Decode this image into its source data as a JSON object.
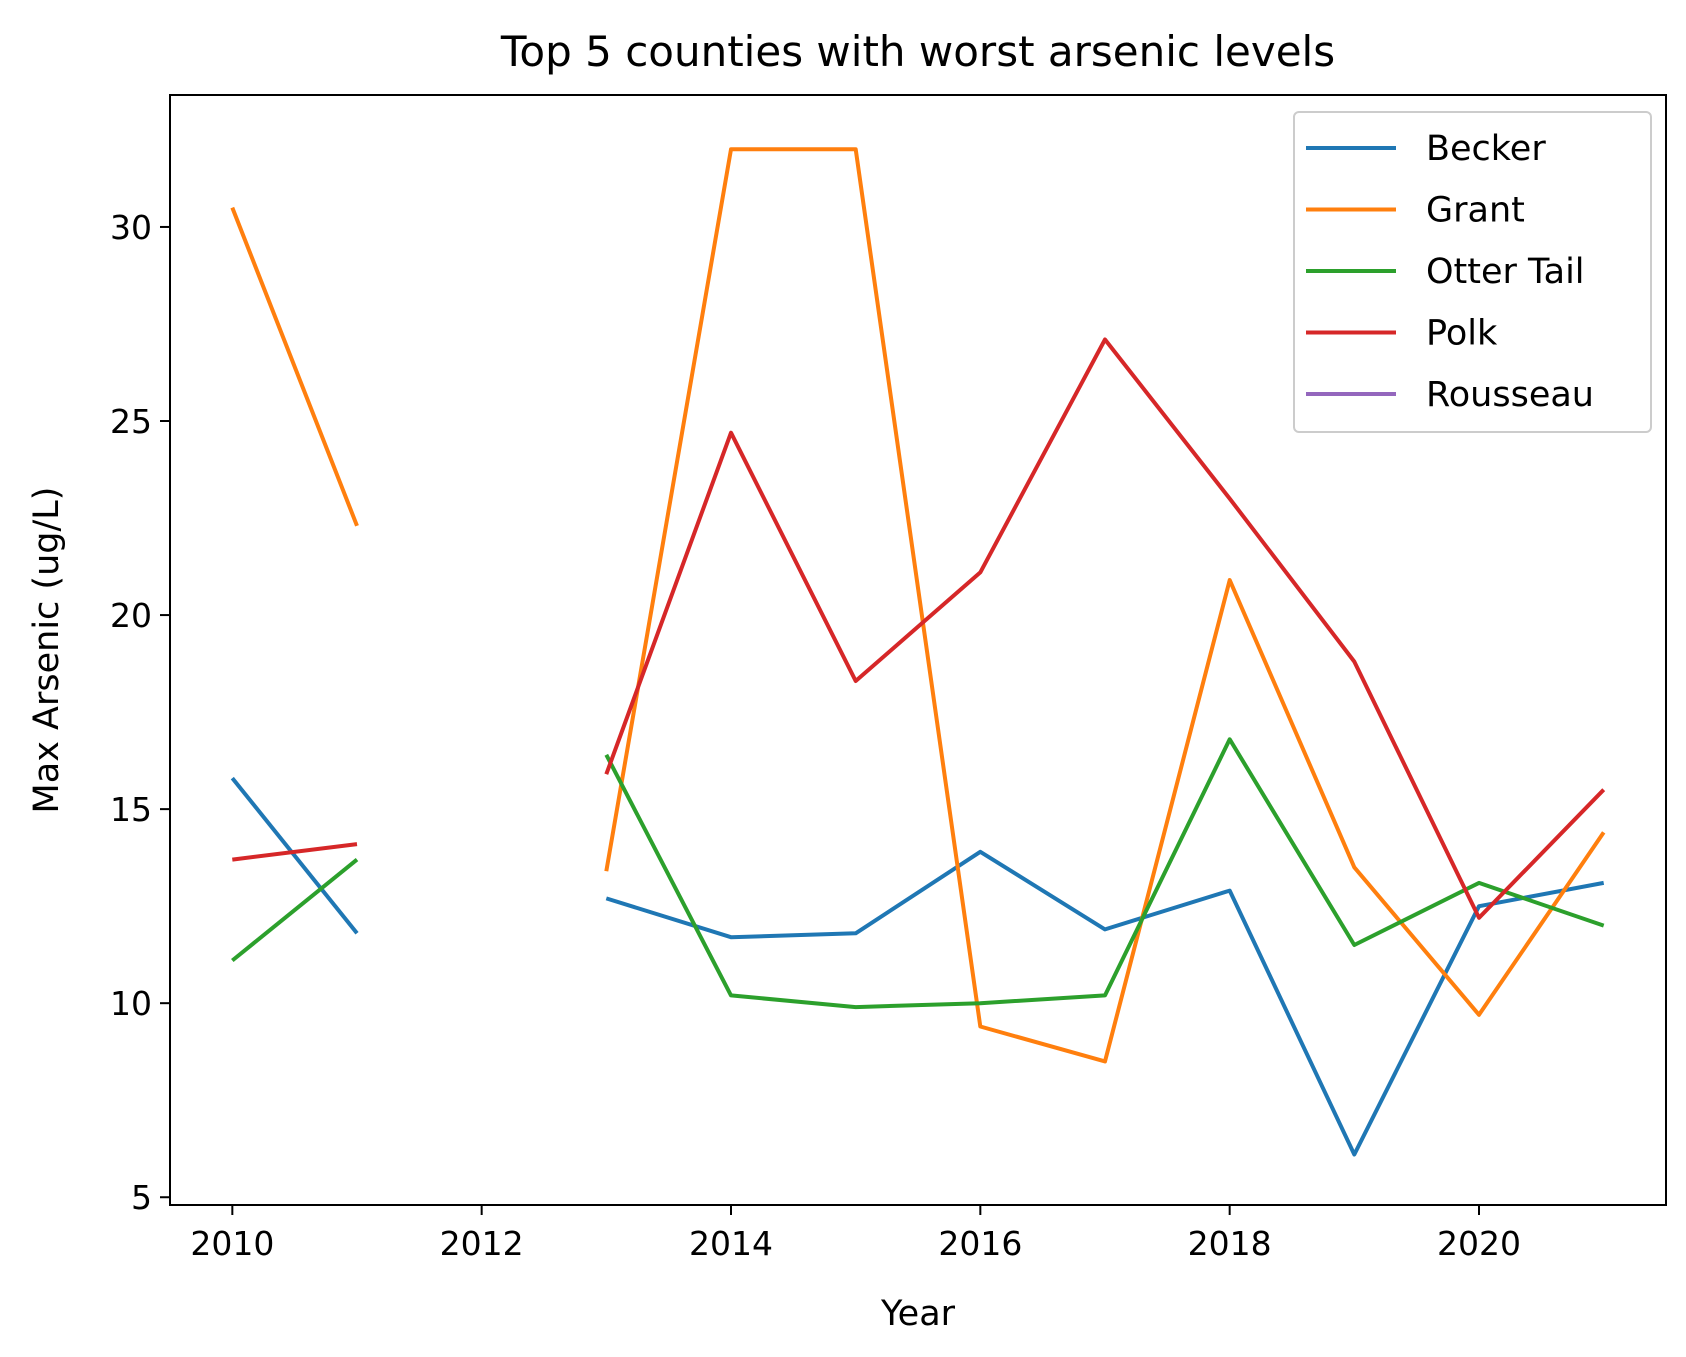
{
  "chart_data": {
    "type": "line",
    "title": "Top 5 counties with worst arsenic levels",
    "xlabel": "Year",
    "ylabel": "Max Arsenic (ug/L)",
    "xlim": [
      2009.5,
      2021.5
    ],
    "ylim": [
      4.8,
      33.4
    ],
    "xticks": [
      2010,
      2012,
      2014,
      2016,
      2018,
      2020
    ],
    "yticks": [
      5,
      10,
      15,
      20,
      25,
      30
    ],
    "grid": false,
    "legend_position": "upper right",
    "x": [
      2010,
      2011,
      2012,
      2013,
      2014,
      2015,
      2016,
      2017,
      2018,
      2019,
      2020,
      2021
    ],
    "series": [
      {
        "name": "Becker",
        "color": "#1f77b4",
        "values": [
          15.8,
          11.8,
          null,
          12.7,
          11.7,
          11.8,
          13.9,
          11.9,
          12.9,
          6.1,
          12.5,
          13.1
        ]
      },
      {
        "name": "Grant",
        "color": "#ff7f0e",
        "values": [
          30.5,
          22.3,
          null,
          13.4,
          32.0,
          32.0,
          9.4,
          8.5,
          20.9,
          13.5,
          9.7,
          14.4
        ]
      },
      {
        "name": "Otter Tail",
        "color": "#2ca02c",
        "values": [
          11.1,
          13.7,
          null,
          16.4,
          10.2,
          9.9,
          10.0,
          10.2,
          16.8,
          11.5,
          13.1,
          12.0
        ]
      },
      {
        "name": "Polk",
        "color": "#d62728",
        "values": [
          13.7,
          14.1,
          null,
          15.9,
          24.7,
          18.3,
          21.1,
          27.1,
          23.0,
          18.8,
          12.2,
          15.5
        ]
      },
      {
        "name": "Rousseau",
        "color": "#9467bd",
        "values": [
          null,
          null,
          null,
          null,
          null,
          null,
          null,
          null,
          null,
          null,
          null,
          null
        ]
      }
    ]
  }
}
